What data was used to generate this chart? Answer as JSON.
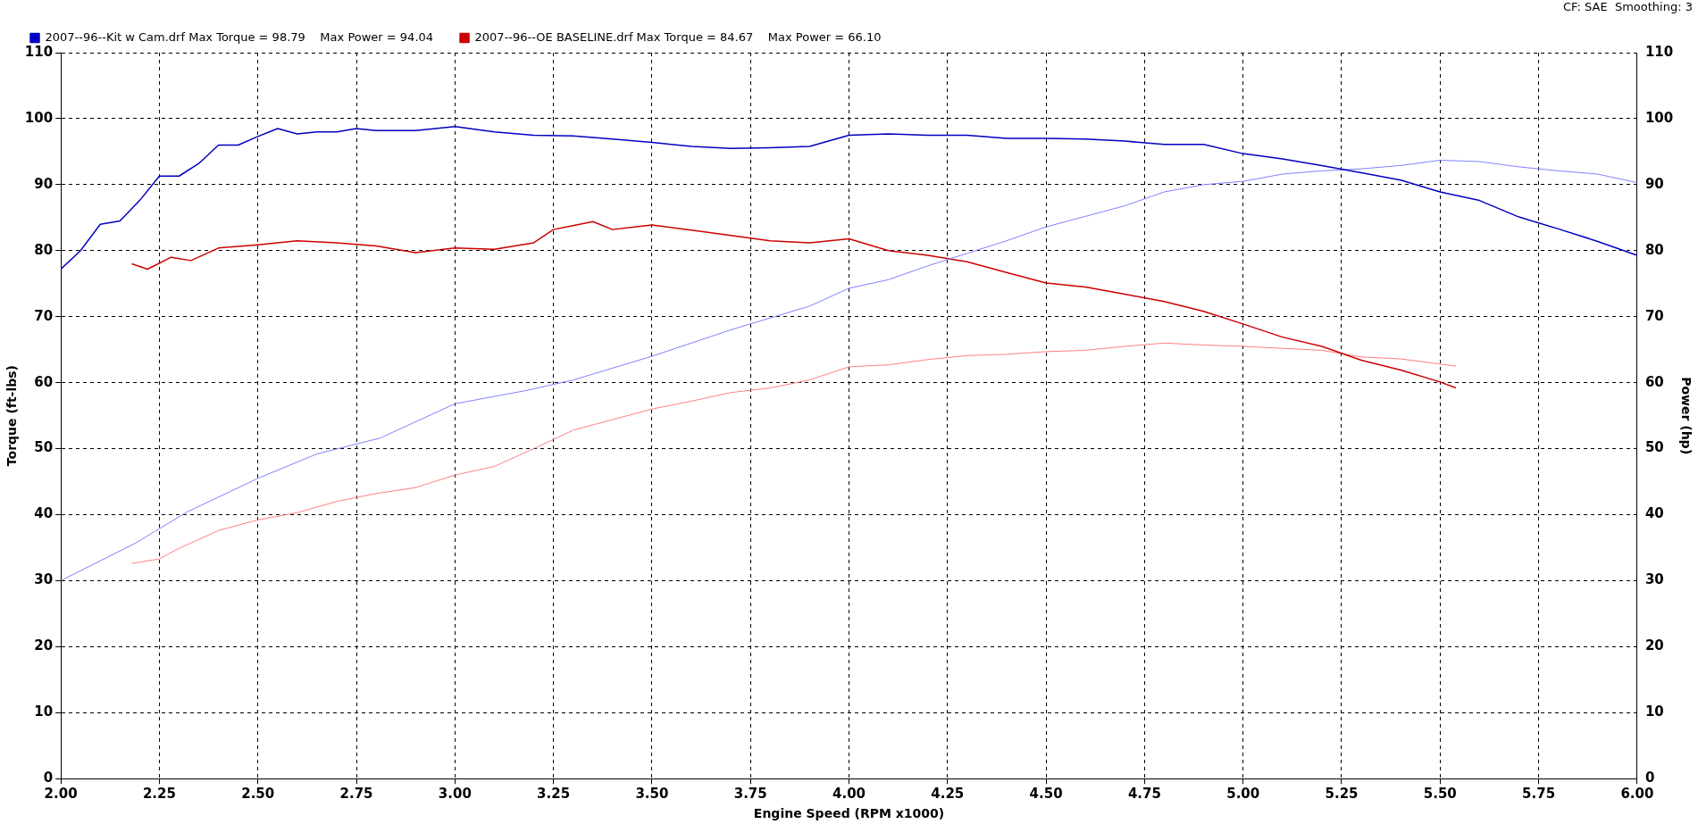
{
  "chart_data": {
    "type": "line",
    "xlabel": "Engine Speed (RPM x1000)",
    "ylabel": "Torque (ft-lbs)",
    "y2label": "Power (hp)",
    "annotations": [
      "CF: SAE  Smoothing: 3"
    ],
    "xlim": [
      2,
      6
    ],
    "xticks": [
      {
        "value": 2,
        "label": "2.00"
      },
      {
        "value": 2.25,
        "label": "2.25"
      },
      {
        "value": 2.5,
        "label": "2.50"
      },
      {
        "value": 2.75,
        "label": "2.75"
      },
      {
        "value": 3,
        "label": "3.00"
      },
      {
        "value": 3.25,
        "label": "3.25"
      },
      {
        "value": 3.5,
        "label": "3.50"
      },
      {
        "value": 3.75,
        "label": "3.75"
      },
      {
        "value": 4,
        "label": "4.00"
      },
      {
        "value": 4.25,
        "label": "4.25"
      },
      {
        "value": 4.5,
        "label": "4.50"
      },
      {
        "value": 4.75,
        "label": "4.75"
      },
      {
        "value": 5,
        "label": "5.00"
      },
      {
        "value": 5.25,
        "label": "5.25"
      },
      {
        "value": 5.5,
        "label": "5.50"
      },
      {
        "value": 5.75,
        "label": "5.75"
      },
      {
        "value": 6,
        "label": "6.00"
      }
    ],
    "ylim": [
      0,
      110
    ],
    "yticks": [
      0,
      10,
      20,
      30,
      40,
      50,
      60,
      70,
      80,
      90,
      100,
      110
    ],
    "y2lim": [
      0,
      110
    ],
    "y2ticks": [
      0,
      10,
      20,
      30,
      40,
      50,
      60,
      70,
      80,
      90,
      100,
      110
    ],
    "grid": true,
    "legend": "top left",
    "marker": "none",
    "line_style": "solid",
    "series": [
      {
        "name": "2007--96--Kit w Cam.drf Max Torque = 98.79    Max Power = 94.04",
        "color": "#0000c0",
        "x": [
          2.0,
          2.05,
          2.1,
          2.15,
          2.2,
          2.25,
          2.3,
          2.35,
          2.4,
          2.45,
          2.5,
          2.55,
          2.6,
          2.65,
          2.7,
          2.75,
          2.8,
          2.9,
          3.0,
          3.1,
          3.2,
          3.3,
          3.4,
          3.5,
          3.6,
          3.7,
          3.8,
          3.9,
          4.0,
          4.1,
          4.2,
          4.3,
          4.4,
          4.5,
          4.6,
          4.7,
          4.8,
          4.9,
          5.0,
          5.1,
          5.2,
          5.3,
          5.4,
          5.5,
          5.6,
          5.7,
          5.8,
          5.9,
          6.0
        ],
        "values": [
          77.2,
          80,
          84,
          84.5,
          87.6,
          91.3,
          91.3,
          93.2,
          96,
          96,
          97.3,
          98.5,
          97.7,
          98,
          98,
          98.5,
          98.2,
          98.2,
          98.8,
          98,
          97.5,
          97.4,
          96.9,
          96.4,
          95.8,
          95.5,
          95.6,
          95.8,
          97.5,
          97.7,
          97.5,
          97.5,
          97,
          97,
          96.9,
          96.6,
          96.1,
          96.1,
          94.7,
          93.9,
          92.9,
          91.8,
          90.7,
          88.9,
          87.6,
          85.1,
          83.3,
          81.4,
          79.3
        ]
      },
      {
        "color": "#8080ff",
        "axis": "y2",
        "x": [
          2.0,
          2.19,
          2.32,
          2.5,
          2.65,
          2.81,
          3.0,
          3.18,
          3.3,
          3.5,
          3.7,
          3.9,
          4.0,
          4.1,
          4.2,
          4.3,
          4.4,
          4.5,
          4.7,
          4.8,
          4.9,
          5.0,
          5.1,
          5.2,
          5.3,
          5.4,
          5.5,
          5.6,
          5.7,
          5.8,
          5.9,
          6.0
        ],
        "values": [
          30,
          35.7,
          40.4,
          45.5,
          49.2,
          51.6,
          56.8,
          58.8,
          60.4,
          64,
          68,
          71.6,
          74.3,
          75.6,
          77.7,
          79.6,
          81.5,
          83.6,
          86.8,
          88.9,
          90,
          90.5,
          91.6,
          92.1,
          92.4,
          92.9,
          93.7,
          93.5,
          92.7,
          92.1,
          91.6,
          90.3
        ]
      },
      {
        "name": "2007--96--OE BASELINE.drf Max Torque = 84.67    Max Power = 66.10",
        "color": "#cc0000",
        "x": [
          2.18,
          2.22,
          2.28,
          2.33,
          2.4,
          2.5,
          2.6,
          2.7,
          2.8,
          2.9,
          3.0,
          3.1,
          3.2,
          3.25,
          3.35,
          3.4,
          3.5,
          3.6,
          3.7,
          3.8,
          3.9,
          4.0,
          4.1,
          4.2,
          4.3,
          4.4,
          4.5,
          4.6,
          4.7,
          4.8,
          4.9,
          5.0,
          5.1,
          5.2,
          5.3,
          5.4,
          5.5,
          5.54
        ],
        "values": [
          78,
          77.2,
          79,
          78.5,
          80.4,
          80.9,
          81.5,
          81.2,
          80.7,
          79.7,
          80.4,
          80.2,
          81.2,
          83.2,
          84.4,
          83.2,
          83.9,
          83.1,
          82.3,
          81.5,
          81.2,
          81.8,
          80,
          79.3,
          78.3,
          76.7,
          75.1,
          74.5,
          73.4,
          72.3,
          70.8,
          68.9,
          66.9,
          65.5,
          63.4,
          61.9,
          60.1,
          59.2
        ]
      },
      {
        "color": "#ff8080",
        "axis": "y2",
        "x": [
          2.18,
          2.25,
          2.3,
          2.4,
          2.5,
          2.6,
          2.7,
          2.8,
          2.9,
          3.0,
          3.1,
          3.2,
          3.3,
          3.4,
          3.5,
          3.6,
          3.7,
          3.8,
          3.9,
          4.0,
          4.1,
          4.2,
          4.3,
          4.4,
          4.5,
          4.6,
          4.7,
          4.8,
          4.9,
          5.0,
          5.1,
          5.2,
          5.3,
          5.4,
          5.54
        ],
        "values": [
          32.6,
          33.3,
          34.9,
          37.6,
          39.2,
          40.3,
          42,
          43.2,
          44.1,
          46,
          47.3,
          50,
          52.8,
          54.4,
          56,
          57.2,
          58.5,
          59.2,
          60.4,
          62.4,
          62.7,
          63.5,
          64.1,
          64.3,
          64.7,
          64.9,
          65.5,
          66,
          65.7,
          65.5,
          65.2,
          64.9,
          63.9,
          63.6,
          62.5
        ]
      }
    ]
  }
}
